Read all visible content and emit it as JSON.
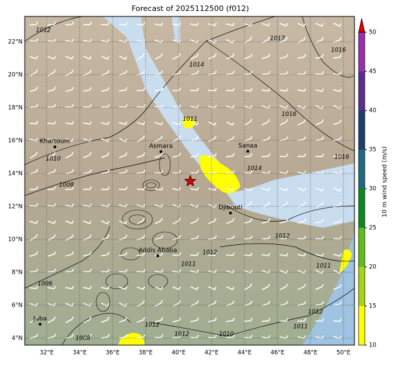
{
  "title": "Forecast of 2025112500 (f012)",
  "map": {
    "lonlim": [
      30.67,
      50.67
    ],
    "latlim": [
      3.58,
      23.54
    ],
    "xticks": [
      {
        "value": 32,
        "label": "32°E"
      },
      {
        "value": 34,
        "label": "34°E"
      },
      {
        "value": 36,
        "label": "36°E"
      },
      {
        "value": 38,
        "label": "38°E"
      },
      {
        "value": 40,
        "label": "40°E"
      },
      {
        "value": 42,
        "label": "42°E"
      },
      {
        "value": 44,
        "label": "44°E"
      },
      {
        "value": 46,
        "label": "46°E"
      },
      {
        "value": 48,
        "label": "48°E"
      },
      {
        "value": 50,
        "label": "50°E"
      }
    ],
    "yticks": [
      {
        "value": 4,
        "label": "4°N"
      },
      {
        "value": 6,
        "label": "6°N"
      },
      {
        "value": 8,
        "label": "8°N"
      },
      {
        "value": 10,
        "label": "10°N"
      },
      {
        "value": 12,
        "label": "12°N"
      },
      {
        "value": 14,
        "label": "14°N"
      },
      {
        "value": 16,
        "label": "16°N"
      },
      {
        "value": 18,
        "label": "18°N"
      },
      {
        "value": 20,
        "label": "20°N"
      },
      {
        "value": 22,
        "label": "22°N"
      }
    ],
    "grid": true,
    "cities": [
      {
        "name": "Khartoum",
        "lon": 32.5,
        "lat": 15.62
      },
      {
        "name": "Asmara",
        "lon": 38.93,
        "lat": 15.33
      },
      {
        "name": "Sanaa",
        "lon": 44.2,
        "lat": 15.35
      },
      {
        "name": "Djibouti",
        "lon": 43.15,
        "lat": 11.6
      },
      {
        "name": "Addis Ababa",
        "lon": 38.74,
        "lat": 9.0
      },
      {
        "name": "Juba",
        "lon": 31.6,
        "lat": 4.85
      }
    ],
    "marker": {
      "lon": 40.71,
      "lat": 13.54,
      "color": "#e00000"
    },
    "contour_labels": [
      {
        "value": 1012,
        "lon": 31.8,
        "lat": 22.7
      },
      {
        "value": 1017,
        "lon": 46.0,
        "lat": 22.2
      },
      {
        "value": 1016,
        "lon": 49.7,
        "lat": 21.5
      },
      {
        "value": 1014,
        "lon": 41.1,
        "lat": 20.6
      },
      {
        "value": 1011,
        "lon": 40.7,
        "lat": 17.3
      },
      {
        "value": 1016,
        "lon": 46.7,
        "lat": 17.6
      },
      {
        "value": 1010,
        "lon": 32.4,
        "lat": 14.9
      },
      {
        "value": 1008,
        "lon": 33.2,
        "lat": 13.3
      },
      {
        "value": 1016,
        "lon": 49.9,
        "lat": 15.0
      },
      {
        "value": 1014,
        "lon": 44.6,
        "lat": 14.3
      },
      {
        "value": 1012,
        "lon": 46.3,
        "lat": 10.2
      },
      {
        "value": 1011,
        "lon": 48.8,
        "lat": 8.4
      },
      {
        "value": 1006,
        "lon": 31.9,
        "lat": 7.3
      },
      {
        "value": 1012,
        "lon": 38.4,
        "lat": 4.8
      },
      {
        "value": 1012,
        "lon": 40.2,
        "lat": 4.25
      },
      {
        "value": 1010,
        "lon": 42.9,
        "lat": 4.25
      },
      {
        "value": 1011,
        "lon": 47.4,
        "lat": 4.7
      },
      {
        "value": 1012,
        "lon": 48.3,
        "lat": 5.6
      },
      {
        "value": 1008,
        "lon": 34.2,
        "lat": 4.0
      },
      {
        "value": 1011,
        "lon": 40.6,
        "lat": 8.5
      },
      {
        "value": 1012,
        "lon": 41.9,
        "lat": 9.2
      }
    ]
  },
  "colorbar": {
    "label": "10 m wind speed (m/s)",
    "lim": [
      10,
      50
    ],
    "ticks": [
      10,
      15,
      20,
      25,
      30,
      35,
      40,
      45,
      50
    ],
    "colors": [
      "#ffff00",
      "#a6d70f",
      "#5cbf14",
      "#0a8a1e",
      "#1e6a82",
      "#1d3e6e",
      "#5b2d8e",
      "#9a2fb0"
    ],
    "extend_color": "#e00000"
  }
}
